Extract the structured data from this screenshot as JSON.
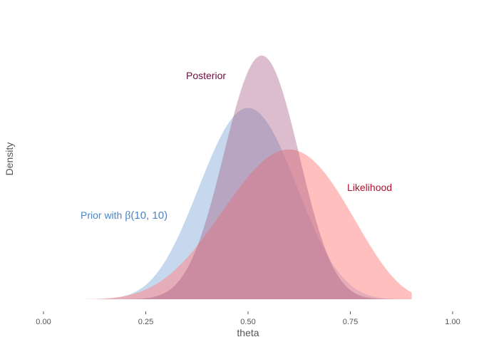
{
  "chart_data": {
    "type": "area",
    "xlabel": "theta",
    "ylabel": "Density",
    "xlim": [
      0,
      1
    ],
    "x_ticks": [
      "0.00",
      "0.25",
      "0.50",
      "0.75",
      "1.00"
    ],
    "x_tick_values": [
      0,
      0.25,
      0.5,
      0.75,
      1
    ],
    "grid": false,
    "series": [
      {
        "name": "Prior with β(10, 10)",
        "distribution": "beta",
        "alpha": 10,
        "beta": 10,
        "color": "#A6C3E3",
        "opacity": 0.65
      },
      {
        "name": "Likelihood",
        "distribution": "beta",
        "alpha": 7,
        "beta": 5,
        "color": "#FF8A8A",
        "opacity": 0.55
      },
      {
        "name": "Posterior",
        "distribution": "beta",
        "alpha": 17,
        "beta": 15,
        "color": "#A55A82",
        "opacity": 0.4
      }
    ],
    "annotations": [
      {
        "text": "Posterior",
        "color": "#6B0D3E"
      },
      {
        "text": "Likelihood",
        "color": "#B0112E"
      },
      {
        "prefix": "Prior with ",
        "symbol": "β",
        "suffix": "(10, 10)",
        "color": "#4A86C8"
      }
    ]
  }
}
